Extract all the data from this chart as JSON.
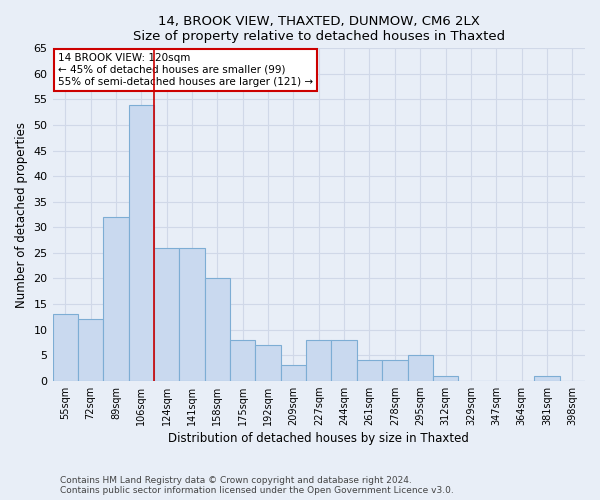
{
  "title1": "14, BROOK VIEW, THAXTED, DUNMOW, CM6 2LX",
  "title2": "Size of property relative to detached houses in Thaxted",
  "xlabel": "Distribution of detached houses by size in Thaxted",
  "ylabel": "Number of detached properties",
  "footer1": "Contains HM Land Registry data © Crown copyright and database right 2024.",
  "footer2": "Contains public sector information licensed under the Open Government Licence v3.0.",
  "bar_labels": [
    "55sqm",
    "72sqm",
    "89sqm",
    "106sqm",
    "124sqm",
    "141sqm",
    "158sqm",
    "175sqm",
    "192sqm",
    "209sqm",
    "227sqm",
    "244sqm",
    "261sqm",
    "278sqm",
    "295sqm",
    "312sqm",
    "329sqm",
    "347sqm",
    "364sqm",
    "381sqm",
    "398sqm"
  ],
  "bar_values": [
    13,
    12,
    32,
    54,
    26,
    26,
    20,
    8,
    7,
    3,
    8,
    8,
    4,
    4,
    5,
    1,
    0,
    0,
    0,
    1,
    0
  ],
  "bar_color": "#c9d9ef",
  "bar_edge_color": "#7dadd4",
  "background_color": "#e8eef7",
  "grid_color": "#d0d8e8",
  "property_line_x": 4.0,
  "annotation_text1": "14 BROOK VIEW: 120sqm",
  "annotation_text2": "← 45% of detached houses are smaller (99)",
  "annotation_text3": "55% of semi-detached houses are larger (121) →",
  "annotation_box_color": "#ffffff",
  "annotation_box_edge": "#cc0000",
  "property_line_color": "#cc0000",
  "ylim": [
    0,
    65
  ],
  "yticks": [
    0,
    5,
    10,
    15,
    20,
    25,
    30,
    35,
    40,
    45,
    50,
    55,
    60,
    65
  ]
}
